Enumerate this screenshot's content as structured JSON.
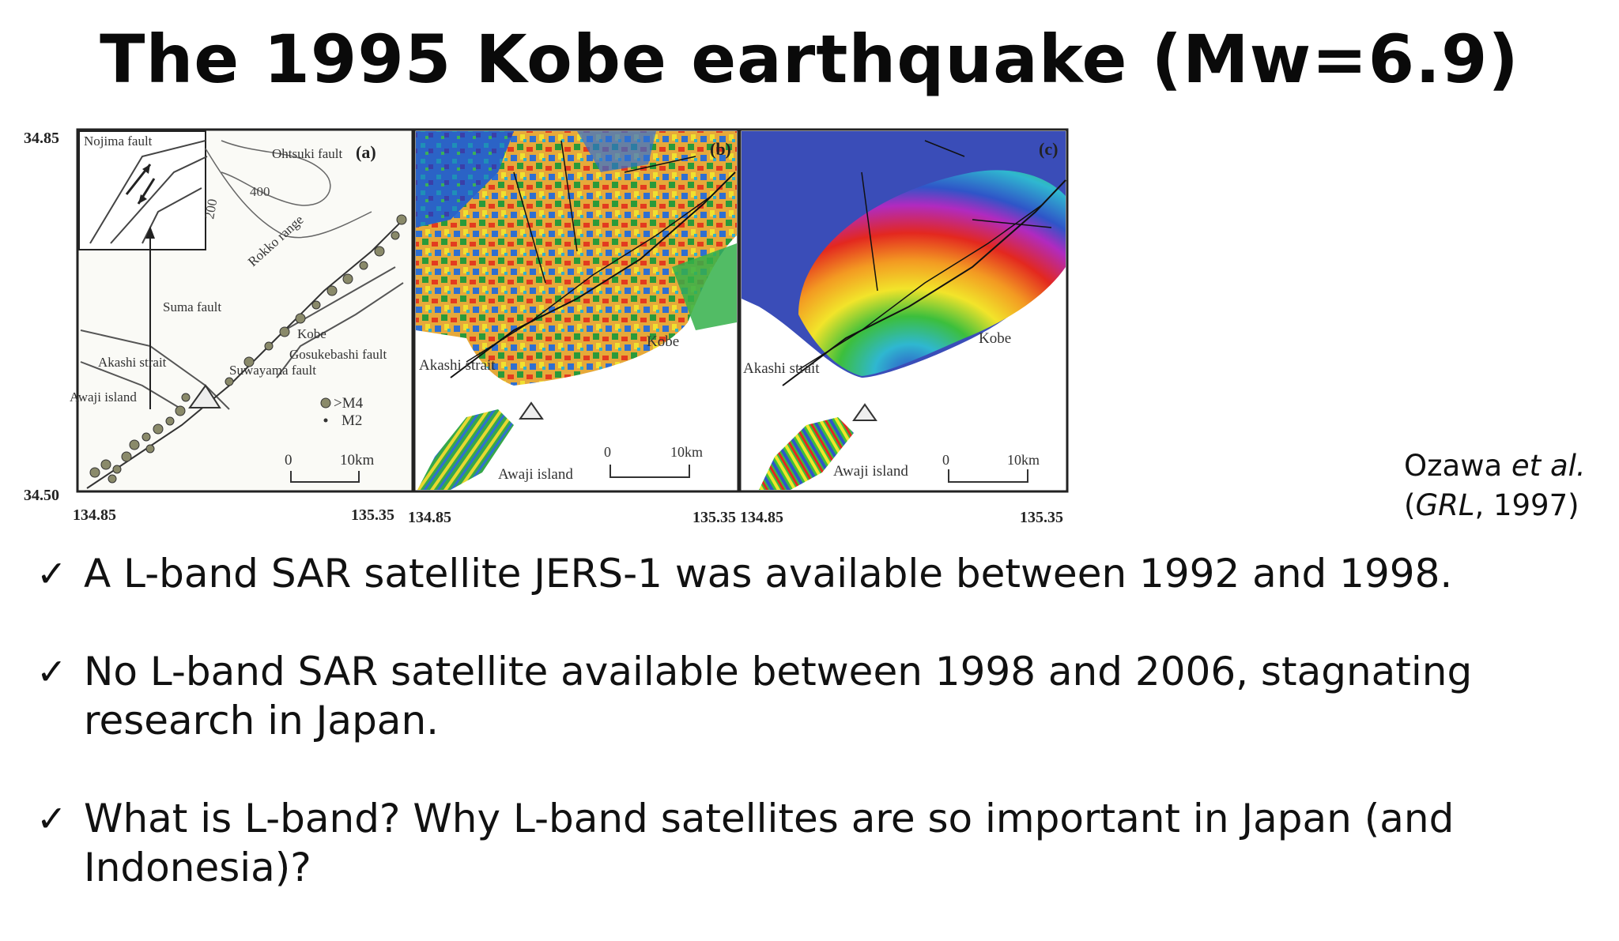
{
  "slide": {
    "title": "The 1995 Kobe earthquake (Mw=6.9)"
  },
  "figure": {
    "panels": [
      {
        "label": "(a)",
        "place_labels": [
          "Nojima fault",
          "Ohtsuki fault",
          "400",
          "200",
          "Rokko range",
          "Suma fault",
          "Kobe",
          "Gosukebashi fault",
          "Akashi strait",
          "Suwayama fault",
          "Awaji island",
          ">M4",
          "M2",
          "0",
          "10km"
        ]
      },
      {
        "label": "(b)",
        "place_labels": [
          "Kobe",
          "Akashi strait",
          "Awaji island",
          "0",
          "10km"
        ]
      },
      {
        "label": "(c)",
        "place_labels": [
          "Kobe",
          "Akashi strait",
          "Awaji island",
          "0",
          "10km"
        ]
      }
    ],
    "lat_top": "34.85",
    "lat_bottom": "34.50",
    "lon_ticks": [
      "134.85",
      "135.35",
      "134.85",
      "135.35",
      "134.85",
      "135.35"
    ]
  },
  "citation": {
    "author": "Ozawa",
    "etal": "et al.",
    "journal": "GRL",
    "year_suffix": ", 1997)",
    "open_paren": "("
  },
  "bullets": [
    {
      "check": "✓",
      "text": "A L-band SAR satellite JERS-1 was available between 1992 and 1998."
    },
    {
      "check": "✓",
      "text": "No L-band SAR satellite available between 1998 and 2006, stagnating research in Japan."
    },
    {
      "check": "✓",
      "text": "What is L-band? Why L-band satellites are so important in Japan (and Indonesia)?"
    }
  ]
}
